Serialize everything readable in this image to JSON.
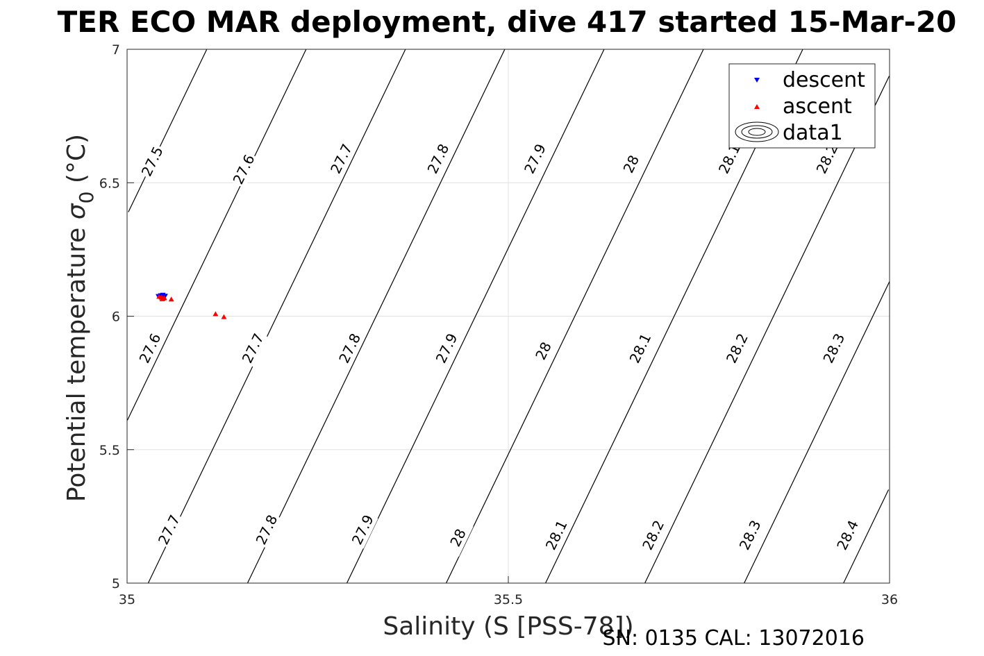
{
  "title": "TER ECO MAR deployment, dive 417 started 15-Mar-20",
  "footer": "SN: 0135  CAL: 13072016",
  "chart_data": {
    "type": "scatter",
    "xlabel": "Salinity (S [PSS-78])",
    "ylabel_main": "Potential temperature ",
    "ylabel_sigma": "σ",
    "ylabel_sub": "0",
    "ylabel_unit": " (°C)",
    "xlim": [
      35,
      36
    ],
    "ylim": [
      5,
      7
    ],
    "xticks": [
      "35",
      "35.5",
      "36"
    ],
    "yticks": [
      "5",
      "5.5",
      "6",
      "6.5",
      "7"
    ],
    "grid": true,
    "legend_position": "top-right",
    "legend": [
      "descent",
      "ascent",
      "data1"
    ],
    "colors": {
      "descent": "#0000ff",
      "ascent": "#ff0000",
      "contour": "#000000",
      "grid": "#e0e0e0"
    },
    "series": [
      {
        "name": "descent",
        "marker": "triangle-down",
        "x": [
          35.041,
          35.044,
          35.046,
          35.048,
          35.05,
          35.047
        ],
        "y": [
          6.075,
          6.078,
          6.073,
          6.07,
          6.076,
          6.08
        ]
      },
      {
        "name": "ascent",
        "marker": "triangle-up",
        "x": [
          35.042,
          35.045,
          35.047,
          35.049,
          35.046,
          35.058,
          35.116,
          35.127
        ],
        "y": [
          6.073,
          6.07,
          6.066,
          6.068,
          6.064,
          6.063,
          6.008,
          5.997
        ]
      }
    ],
    "isopycnal_labels": [
      {
        "text": "27.5",
        "s": 35.033,
        "t": 6.58
      },
      {
        "text": "27.6",
        "s": 35.153,
        "t": 6.55
      },
      {
        "text": "27.7",
        "s": 35.281,
        "t": 6.59
      },
      {
        "text": "27.8",
        "s": 35.408,
        "t": 6.59
      },
      {
        "text": "27.9",
        "s": 35.535,
        "t": 6.59
      },
      {
        "text": "28",
        "s": 35.661,
        "t": 6.57
      },
      {
        "text": "28.1",
        "s": 35.79,
        "t": 6.59
      },
      {
        "text": "28.2",
        "s": 35.918,
        "t": 6.59
      },
      {
        "text": "27.6",
        "s": 35.03,
        "t": 5.88
      },
      {
        "text": "27.7",
        "s": 35.165,
        "t": 5.88
      },
      {
        "text": "27.8",
        "s": 35.292,
        "t": 5.88
      },
      {
        "text": "27.9",
        "s": 35.419,
        "t": 5.88
      },
      {
        "text": "28",
        "s": 35.546,
        "t": 5.87
      },
      {
        "text": "28.1",
        "s": 35.673,
        "t": 5.88
      },
      {
        "text": "28.2",
        "s": 35.8,
        "t": 5.88
      },
      {
        "text": "28.3",
        "s": 35.927,
        "t": 5.88
      },
      {
        "text": "27.7",
        "s": 35.055,
        "t": 5.2
      },
      {
        "text": "27.8",
        "s": 35.183,
        "t": 5.2
      },
      {
        "text": "27.9",
        "s": 35.309,
        "t": 5.2
      },
      {
        "text": "28",
        "s": 35.434,
        "t": 5.17
      },
      {
        "text": "28.1",
        "s": 35.563,
        "t": 5.18
      },
      {
        "text": "28.2",
        "s": 35.69,
        "t": 5.18
      },
      {
        "text": "28.3",
        "s": 35.817,
        "t": 5.18
      },
      {
        "text": "28.4",
        "s": 35.945,
        "t": 5.18
      }
    ]
  }
}
